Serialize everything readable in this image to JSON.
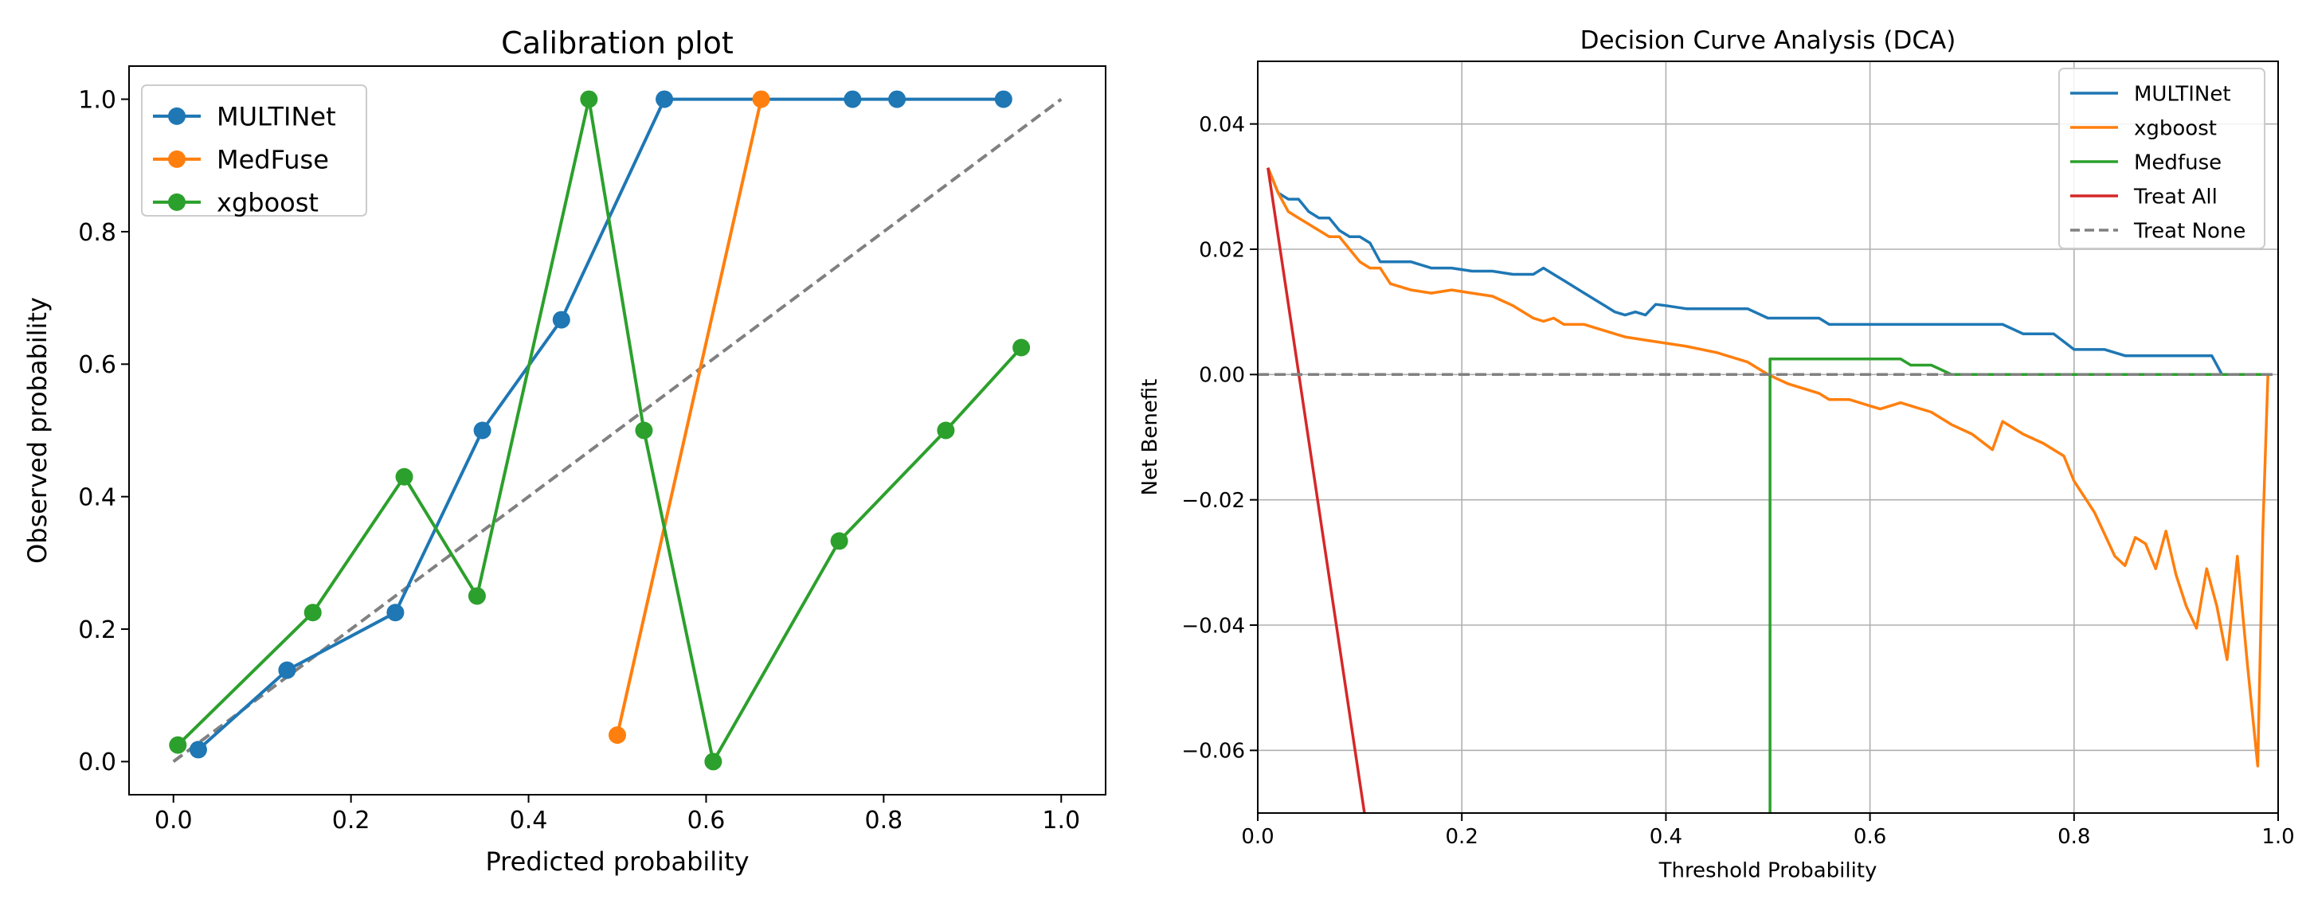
{
  "chart_data": [
    {
      "type": "line",
      "title": "Calibration plot",
      "xlabel": "Predicted probability",
      "ylabel": "Observed probability",
      "xlim": [
        -0.05,
        1.05
      ],
      "ylim": [
        -0.05,
        1.05
      ],
      "xticks": [
        0.0,
        0.2,
        0.4,
        0.6,
        0.8,
        1.0
      ],
      "xtick_labels": [
        "0.0",
        "0.2",
        "0.4",
        "0.6",
        "0.8",
        "1.0"
      ],
      "yticks": [
        0.0,
        0.2,
        0.4,
        0.6,
        0.8,
        1.0
      ],
      "ytick_labels": [
        "0.0",
        "0.2",
        "0.4",
        "0.6",
        "0.8",
        "1.0"
      ],
      "grid": false,
      "legend_position": "top-left",
      "reference_line": {
        "x": [
          0,
          1
        ],
        "y": [
          0,
          1
        ],
        "style": "dashed",
        "color": "#808080"
      },
      "series": [
        {
          "name": "MULTINet",
          "color": "#1f77b4",
          "marker": "circle",
          "x": [
            0.028,
            0.128,
            0.25,
            0.348,
            0.437,
            0.553,
            0.765,
            0.815,
            0.935
          ],
          "y": [
            0.018,
            0.138,
            0.225,
            0.5,
            0.667,
            1.0,
            1.0,
            1.0,
            1.0
          ]
        },
        {
          "name": "MedFuse",
          "color": "#ff7f0e",
          "marker": "circle",
          "x": [
            0.5,
            0.662
          ],
          "y": [
            0.04,
            1.0
          ]
        },
        {
          "name": "xgboost",
          "color": "#2ca02c",
          "marker": "circle",
          "x": [
            0.005,
            0.157,
            0.26,
            0.342,
            0.468,
            0.53,
            0.608,
            0.75,
            0.87,
            0.955
          ],
          "y": [
            0.025,
            0.225,
            0.43,
            0.25,
            1.0,
            0.5,
            0.0,
            0.333,
            0.5,
            0.625
          ]
        }
      ]
    },
    {
      "type": "line",
      "title": "Decision Curve Analysis (DCA)",
      "xlabel": "Threshold Probability",
      "ylabel": "Net Benefit",
      "xlim": [
        0.0,
        1.0
      ],
      "ylim": [
        -0.07,
        0.05
      ],
      "xticks": [
        0.0,
        0.2,
        0.4,
        0.6,
        0.8,
        1.0
      ],
      "xtick_labels": [
        "0.0",
        "0.2",
        "0.4",
        "0.6",
        "0.8",
        "1.0"
      ],
      "yticks": [
        -0.06,
        -0.04,
        -0.02,
        0.0,
        0.02,
        0.04
      ],
      "ytick_labels": [
        "−0.06",
        "−0.04",
        "−0.02",
        "0.00",
        "0.02",
        "0.04"
      ],
      "grid": true,
      "legend_position": "top-right",
      "series": [
        {
          "name": "MULTINet",
          "color": "#1f77b4",
          "dash": false,
          "x": [
            0.01,
            0.02,
            0.03,
            0.04,
            0.05,
            0.06,
            0.07,
            0.08,
            0.09,
            0.1,
            0.11,
            0.12,
            0.13,
            0.15,
            0.17,
            0.19,
            0.21,
            0.23,
            0.25,
            0.27,
            0.28,
            0.29,
            0.3,
            0.32,
            0.34,
            0.35,
            0.36,
            0.37,
            0.38,
            0.39,
            0.4,
            0.42,
            0.45,
            0.48,
            0.5,
            0.53,
            0.55,
            0.56,
            0.6,
            0.65,
            0.7,
            0.72,
            0.73,
            0.75,
            0.78,
            0.8,
            0.83,
            0.85,
            0.9,
            0.92,
            0.935,
            0.945,
            0.99
          ],
          "y": [
            0.033,
            0.029,
            0.028,
            0.028,
            0.026,
            0.025,
            0.025,
            0.023,
            0.022,
            0.022,
            0.021,
            0.018,
            0.018,
            0.018,
            0.017,
            0.017,
            0.0165,
            0.0165,
            0.016,
            0.016,
            0.017,
            0.016,
            0.015,
            0.013,
            0.011,
            0.01,
            0.0095,
            0.01,
            0.0095,
            0.0112,
            0.011,
            0.0105,
            0.0105,
            0.0105,
            0.009,
            0.009,
            0.009,
            0.008,
            0.008,
            0.008,
            0.008,
            0.008,
            0.008,
            0.0065,
            0.0065,
            0.004,
            0.004,
            0.003,
            0.003,
            0.003,
            0.003,
            0.0,
            0.0
          ]
        },
        {
          "name": "xgboost",
          "color": "#ff7f0e",
          "dash": false,
          "x": [
            0.01,
            0.02,
            0.03,
            0.04,
            0.05,
            0.06,
            0.07,
            0.08,
            0.09,
            0.1,
            0.11,
            0.12,
            0.13,
            0.15,
            0.17,
            0.19,
            0.21,
            0.23,
            0.25,
            0.27,
            0.28,
            0.29,
            0.3,
            0.32,
            0.34,
            0.36,
            0.38,
            0.4,
            0.42,
            0.45,
            0.48,
            0.5,
            0.52,
            0.55,
            0.56,
            0.58,
            0.6,
            0.61,
            0.63,
            0.66,
            0.68,
            0.7,
            0.72,
            0.73,
            0.75,
            0.77,
            0.79,
            0.8,
            0.82,
            0.83,
            0.84,
            0.85,
            0.86,
            0.87,
            0.88,
            0.89,
            0.9,
            0.91,
            0.92,
            0.93,
            0.94,
            0.95,
            0.96,
            0.97,
            0.98,
            0.985,
            0.99
          ],
          "y": [
            0.033,
            0.029,
            0.026,
            0.025,
            0.024,
            0.023,
            0.022,
            0.022,
            0.02,
            0.018,
            0.017,
            0.017,
            0.0145,
            0.0135,
            0.013,
            0.0135,
            0.013,
            0.0125,
            0.011,
            0.009,
            0.0085,
            0.009,
            0.008,
            0.008,
            0.007,
            0.006,
            0.0055,
            0.005,
            0.0045,
            0.0035,
            0.002,
            0.0,
            -0.0015,
            -0.003,
            -0.004,
            -0.004,
            -0.005,
            -0.0055,
            -0.0045,
            -0.006,
            -0.008,
            -0.0095,
            -0.012,
            -0.0075,
            -0.0095,
            -0.011,
            -0.013,
            -0.017,
            -0.022,
            -0.0255,
            -0.029,
            -0.0305,
            -0.026,
            -0.027,
            -0.031,
            -0.025,
            -0.032,
            -0.037,
            -0.0405,
            -0.031,
            -0.037,
            -0.0455,
            -0.029,
            -0.0465,
            -0.0625,
            -0.025,
            0.0
          ]
        },
        {
          "name": "Medfuse",
          "color": "#2ca02c",
          "dash": false,
          "x": [
            0.502,
            0.502,
            0.63,
            0.64,
            0.66,
            0.68,
            0.99
          ],
          "y": [
            -0.07,
            0.0025,
            0.0025,
            0.0015,
            0.0015,
            0.0,
            0.0
          ]
        },
        {
          "name": "Treat All",
          "color": "#d62728",
          "dash": false,
          "x": [
            0.01,
            0.105
          ],
          "y": [
            0.033,
            -0.0705
          ]
        },
        {
          "name": "Treat None",
          "color": "#808080",
          "dash": true,
          "x": [
            0.0,
            1.0
          ],
          "y": [
            0.0,
            0.0
          ]
        }
      ]
    }
  ]
}
